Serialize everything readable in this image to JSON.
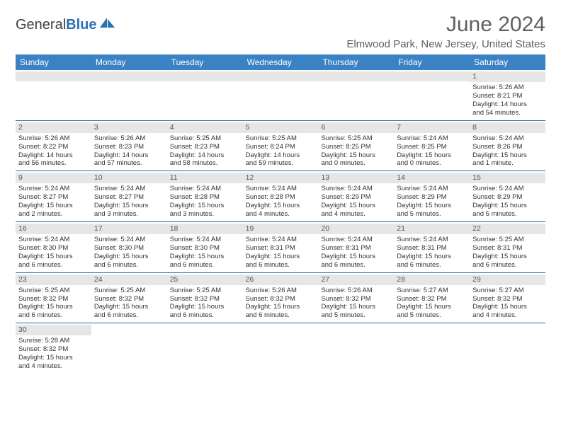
{
  "logo": {
    "general": "General",
    "blue": "Blue"
  },
  "title": "June 2024",
  "location": "Elmwood Park, New Jersey, United States",
  "columns": [
    "Sunday",
    "Monday",
    "Tuesday",
    "Wednesday",
    "Thursday",
    "Friday",
    "Saturday"
  ],
  "colors": {
    "header_bg": "#3a82c4",
    "header_text": "#ffffff",
    "row_border": "#2a6aa8",
    "daynum_bg": "#e6e6e6",
    "text": "#333333",
    "title_text": "#606060"
  },
  "weeks": [
    [
      null,
      null,
      null,
      null,
      null,
      null,
      {
        "d": "1",
        "sr": "Sunrise: 5:26 AM",
        "ss": "Sunset: 8:21 PM",
        "dl1": "Daylight: 14 hours",
        "dl2": "and 54 minutes."
      }
    ],
    [
      {
        "d": "2",
        "sr": "Sunrise: 5:26 AM",
        "ss": "Sunset: 8:22 PM",
        "dl1": "Daylight: 14 hours",
        "dl2": "and 56 minutes."
      },
      {
        "d": "3",
        "sr": "Sunrise: 5:26 AM",
        "ss": "Sunset: 8:23 PM",
        "dl1": "Daylight: 14 hours",
        "dl2": "and 57 minutes."
      },
      {
        "d": "4",
        "sr": "Sunrise: 5:25 AM",
        "ss": "Sunset: 8:23 PM",
        "dl1": "Daylight: 14 hours",
        "dl2": "and 58 minutes."
      },
      {
        "d": "5",
        "sr": "Sunrise: 5:25 AM",
        "ss": "Sunset: 8:24 PM",
        "dl1": "Daylight: 14 hours",
        "dl2": "and 59 minutes."
      },
      {
        "d": "6",
        "sr": "Sunrise: 5:25 AM",
        "ss": "Sunset: 8:25 PM",
        "dl1": "Daylight: 15 hours",
        "dl2": "and 0 minutes."
      },
      {
        "d": "7",
        "sr": "Sunrise: 5:24 AM",
        "ss": "Sunset: 8:25 PM",
        "dl1": "Daylight: 15 hours",
        "dl2": "and 0 minutes."
      },
      {
        "d": "8",
        "sr": "Sunrise: 5:24 AM",
        "ss": "Sunset: 8:26 PM",
        "dl1": "Daylight: 15 hours",
        "dl2": "and 1 minute."
      }
    ],
    [
      {
        "d": "9",
        "sr": "Sunrise: 5:24 AM",
        "ss": "Sunset: 8:27 PM",
        "dl1": "Daylight: 15 hours",
        "dl2": "and 2 minutes."
      },
      {
        "d": "10",
        "sr": "Sunrise: 5:24 AM",
        "ss": "Sunset: 8:27 PM",
        "dl1": "Daylight: 15 hours",
        "dl2": "and 3 minutes."
      },
      {
        "d": "11",
        "sr": "Sunrise: 5:24 AM",
        "ss": "Sunset: 8:28 PM",
        "dl1": "Daylight: 15 hours",
        "dl2": "and 3 minutes."
      },
      {
        "d": "12",
        "sr": "Sunrise: 5:24 AM",
        "ss": "Sunset: 8:28 PM",
        "dl1": "Daylight: 15 hours",
        "dl2": "and 4 minutes."
      },
      {
        "d": "13",
        "sr": "Sunrise: 5:24 AM",
        "ss": "Sunset: 8:29 PM",
        "dl1": "Daylight: 15 hours",
        "dl2": "and 4 minutes."
      },
      {
        "d": "14",
        "sr": "Sunrise: 5:24 AM",
        "ss": "Sunset: 8:29 PM",
        "dl1": "Daylight: 15 hours",
        "dl2": "and 5 minutes."
      },
      {
        "d": "15",
        "sr": "Sunrise: 5:24 AM",
        "ss": "Sunset: 8:29 PM",
        "dl1": "Daylight: 15 hours",
        "dl2": "and 5 minutes."
      }
    ],
    [
      {
        "d": "16",
        "sr": "Sunrise: 5:24 AM",
        "ss": "Sunset: 8:30 PM",
        "dl1": "Daylight: 15 hours",
        "dl2": "and 6 minutes."
      },
      {
        "d": "17",
        "sr": "Sunrise: 5:24 AM",
        "ss": "Sunset: 8:30 PM",
        "dl1": "Daylight: 15 hours",
        "dl2": "and 6 minutes."
      },
      {
        "d": "18",
        "sr": "Sunrise: 5:24 AM",
        "ss": "Sunset: 8:30 PM",
        "dl1": "Daylight: 15 hours",
        "dl2": "and 6 minutes."
      },
      {
        "d": "19",
        "sr": "Sunrise: 5:24 AM",
        "ss": "Sunset: 8:31 PM",
        "dl1": "Daylight: 15 hours",
        "dl2": "and 6 minutes."
      },
      {
        "d": "20",
        "sr": "Sunrise: 5:24 AM",
        "ss": "Sunset: 8:31 PM",
        "dl1": "Daylight: 15 hours",
        "dl2": "and 6 minutes."
      },
      {
        "d": "21",
        "sr": "Sunrise: 5:24 AM",
        "ss": "Sunset: 8:31 PM",
        "dl1": "Daylight: 15 hours",
        "dl2": "and 6 minutes."
      },
      {
        "d": "22",
        "sr": "Sunrise: 5:25 AM",
        "ss": "Sunset: 8:31 PM",
        "dl1": "Daylight: 15 hours",
        "dl2": "and 6 minutes."
      }
    ],
    [
      {
        "d": "23",
        "sr": "Sunrise: 5:25 AM",
        "ss": "Sunset: 8:32 PM",
        "dl1": "Daylight: 15 hours",
        "dl2": "and 6 minutes."
      },
      {
        "d": "24",
        "sr": "Sunrise: 5:25 AM",
        "ss": "Sunset: 8:32 PM",
        "dl1": "Daylight: 15 hours",
        "dl2": "and 6 minutes."
      },
      {
        "d": "25",
        "sr": "Sunrise: 5:25 AM",
        "ss": "Sunset: 8:32 PM",
        "dl1": "Daylight: 15 hours",
        "dl2": "and 6 minutes."
      },
      {
        "d": "26",
        "sr": "Sunrise: 5:26 AM",
        "ss": "Sunset: 8:32 PM",
        "dl1": "Daylight: 15 hours",
        "dl2": "and 6 minutes."
      },
      {
        "d": "27",
        "sr": "Sunrise: 5:26 AM",
        "ss": "Sunset: 8:32 PM",
        "dl1": "Daylight: 15 hours",
        "dl2": "and 5 minutes."
      },
      {
        "d": "28",
        "sr": "Sunrise: 5:27 AM",
        "ss": "Sunset: 8:32 PM",
        "dl1": "Daylight: 15 hours",
        "dl2": "and 5 minutes."
      },
      {
        "d": "29",
        "sr": "Sunrise: 5:27 AM",
        "ss": "Sunset: 8:32 PM",
        "dl1": "Daylight: 15 hours",
        "dl2": "and 4 minutes."
      }
    ],
    [
      {
        "d": "30",
        "sr": "Sunrise: 5:28 AM",
        "ss": "Sunset: 8:32 PM",
        "dl1": "Daylight: 15 hours",
        "dl2": "and 4 minutes."
      },
      null,
      null,
      null,
      null,
      null,
      null
    ]
  ]
}
